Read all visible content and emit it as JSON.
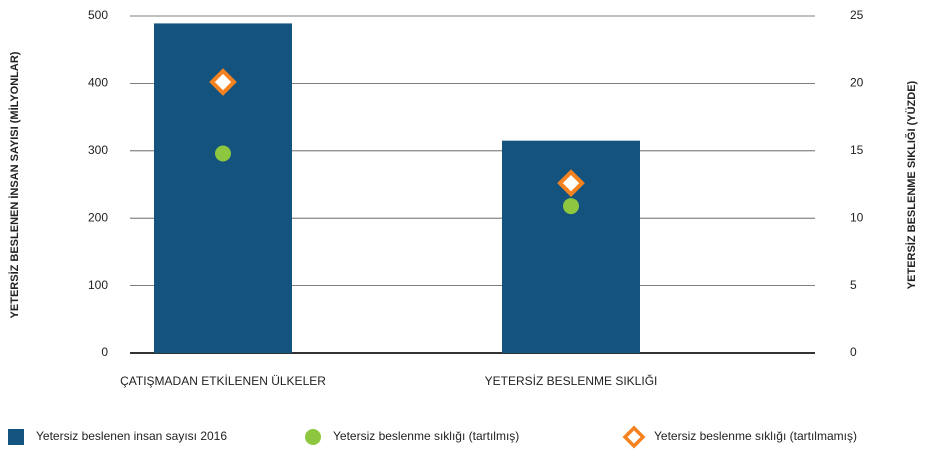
{
  "chart_data": {
    "type": "bar",
    "categories": [
      "ÇATIŞMADAN ETKİLENEN ÜLKELER",
      "YETERSİZ BESLENME SIKLIĞI"
    ],
    "series": [
      {
        "name": "Yetersiz beslenen insan sayısı 2016",
        "type": "bar",
        "color": "#13537e",
        "values": [
          489,
          315
        ]
      },
      {
        "name": "Yetersiz beslenme sıklığı (tartılmış)",
        "type": "scatter",
        "marker": "circle",
        "axis": "y2",
        "color": "#8dc63f",
        "values": [
          14.8,
          10.9
        ]
      },
      {
        "name": "Yetersiz beslenme sıklığı (tartılmamış)",
        "type": "scatter",
        "marker": "diamond",
        "axis": "y2",
        "color": "#f58220",
        "values": [
          20.1,
          12.6
        ]
      }
    ],
    "yaxis_label": "YETERSİZ BESLENEN İNSAN SAYISI (MİLYONLAR)",
    "y2axis_label": "YETERSİZ BESLENME SIKLIĞI (YÜZDE)",
    "ylim": [
      0,
      500
    ],
    "yticks": [
      0,
      100,
      200,
      300,
      400,
      500
    ],
    "y2lim": [
      0,
      25
    ],
    "y2ticks": [
      0,
      5,
      10,
      15,
      20,
      25
    ],
    "grid": true
  }
}
